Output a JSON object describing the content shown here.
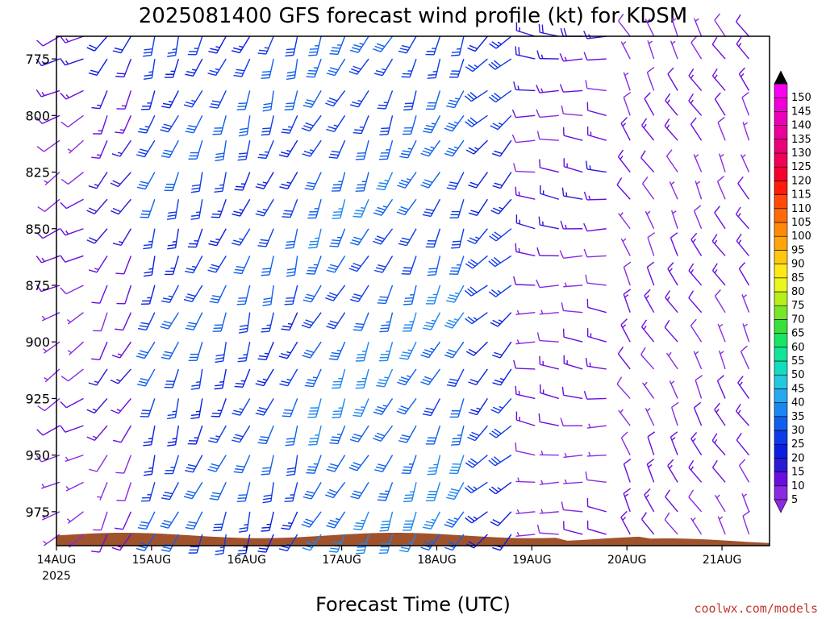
{
  "chart_data": {
    "type": "wind-barb-profile",
    "title": "2025081400 GFS forecast wind profile (kt) for KDSM",
    "xlabel": "Forecast Time (UTC)",
    "ylabel": "",
    "credit": "coolwx.com/models",
    "x_ticks": [
      {
        "day": 0,
        "label": "14AUG",
        "sublabel": "2025"
      },
      {
        "day": 1,
        "label": "15AUG",
        "sublabel": ""
      },
      {
        "day": 2,
        "label": "16AUG",
        "sublabel": ""
      },
      {
        "day": 3,
        "label": "17AUG",
        "sublabel": ""
      },
      {
        "day": 4,
        "label": "18AUG",
        "sublabel": ""
      },
      {
        "day": 5,
        "label": "19AUG",
        "sublabel": ""
      },
      {
        "day": 6,
        "label": "20AUG",
        "sublabel": ""
      },
      {
        "day": 7,
        "label": "21AUG",
        "sublabel": ""
      }
    ],
    "xlim_days": [
      0,
      7.5
    ],
    "y_ticks": [
      775,
      800,
      825,
      850,
      875,
      900,
      925,
      950,
      975
    ],
    "ylim_hpa": [
      990,
      765
    ],
    "y_inverted": true,
    "levels_hpa": [
      765,
      775,
      789,
      800,
      811,
      825,
      837,
      850,
      862,
      875,
      887,
      900,
      912,
      925,
      937,
      950,
      962,
      975,
      985
    ],
    "time_step_hours": 6,
    "colorbar": {
      "ticks": [
        5,
        10,
        15,
        20,
        25,
        30,
        35,
        40,
        45,
        50,
        55,
        60,
        65,
        70,
        75,
        80,
        85,
        90,
        95,
        100,
        105,
        110,
        115,
        120,
        125,
        130,
        135,
        140,
        145,
        150
      ],
      "colors": [
        "#8a2be2",
        "#6a0dde",
        "#2b1bd4",
        "#0a1fe0",
        "#0d3be8",
        "#0f60ee",
        "#1c86f0",
        "#27a9f0",
        "#22c8e0",
        "#14dcc0",
        "#12e49a",
        "#19e464",
        "#3ae03a",
        "#7ae628",
        "#b8ee1a",
        "#eaf61c",
        "#ffe816",
        "#ffc80e",
        "#ffa40a",
        "#ff8a0a",
        "#ff6a0a",
        "#ff4a0a",
        "#ff1c0a",
        "#f5002e",
        "#f10058",
        "#ec007a",
        "#ea0098",
        "#ea00b8",
        "#f000d8",
        "#f800f0"
      ],
      "under_color": "#8a2be2",
      "over_color": "#000000"
    },
    "terrain_color": "#a0522d",
    "grid": false,
    "regimes": [
      {
        "t0": 0,
        "t1": 12,
        "dir": 240,
        "spd_top": 12,
        "spd_bot": 6
      },
      {
        "t0": 12,
        "t1": 24,
        "dir": 210,
        "spd_top": 18,
        "spd_bot": 10
      },
      {
        "t0": 24,
        "t1": 66,
        "dir": 200,
        "spd_top": 28,
        "spd_bot": 28
      },
      {
        "t0": 66,
        "t1": 108,
        "dir": 205,
        "spd_top": 30,
        "spd_bot": 35
      },
      {
        "t0": 108,
        "t1": 120,
        "dir": 225,
        "spd_top": 25,
        "spd_bot": 25
      },
      {
        "t0": 120,
        "t1": 144,
        "dir": 275,
        "spd_top": 14,
        "spd_bot": 8
      },
      {
        "t0": 144,
        "t1": 186,
        "dir": 330,
        "spd_top": 10,
        "spd_bot": 10
      }
    ]
  }
}
